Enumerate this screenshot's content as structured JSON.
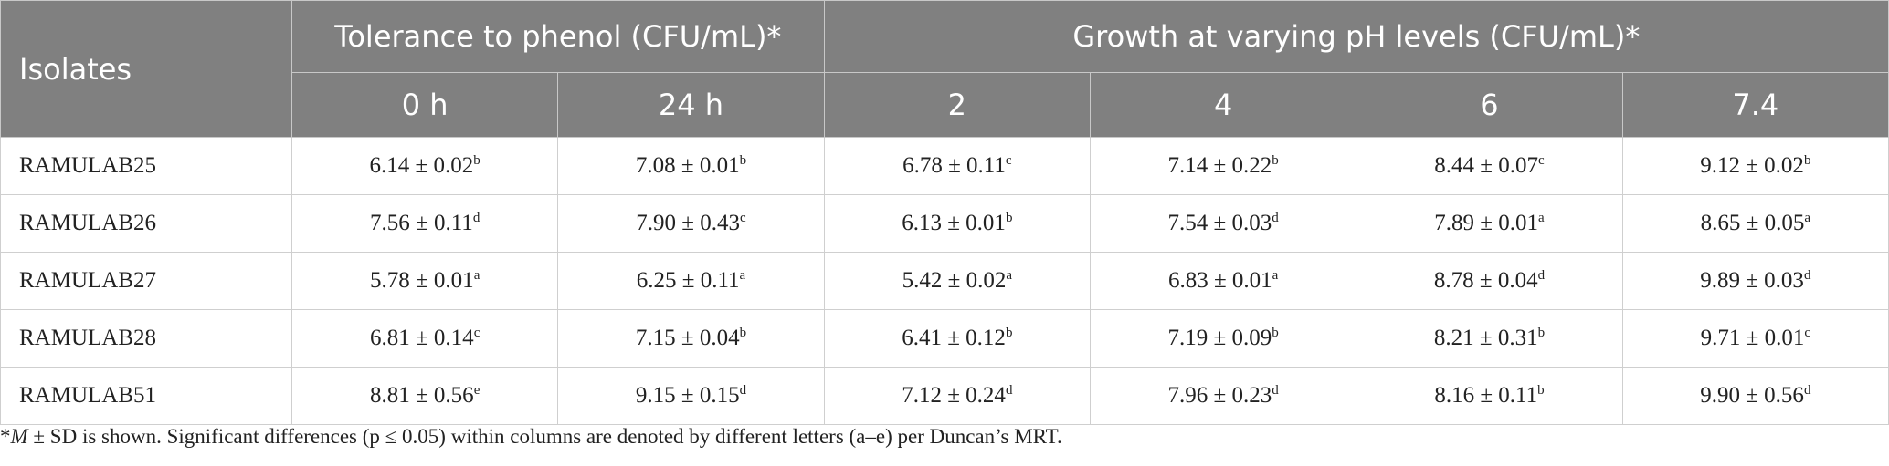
{
  "table": {
    "header": {
      "isolates": "Isolates",
      "groups": [
        "Tolerance to phenol (CFU/mL)*",
        "Growth at varying pH levels (CFU/mL)*"
      ],
      "columns": [
        "0 h",
        "24 h",
        "2",
        "4",
        "6",
        "7.4"
      ]
    },
    "rows": [
      {
        "isolate": "RAMULAB25",
        "cells": [
          {
            "value": "6.14 ± 0.02",
            "letter": "b"
          },
          {
            "value": "7.08 ± 0.01",
            "letter": "b"
          },
          {
            "value": "6.78 ± 0.11",
            "letter": "c"
          },
          {
            "value": "7.14 ± 0.22",
            "letter": "b"
          },
          {
            "value": "8.44 ± 0.07",
            "letter": "c"
          },
          {
            "value": "9.12 ± 0.02",
            "letter": "b"
          }
        ]
      },
      {
        "isolate": "RAMULAB26",
        "cells": [
          {
            "value": "7.56 ± 0.11",
            "letter": "d"
          },
          {
            "value": "7.90 ± 0.43",
            "letter": "c"
          },
          {
            "value": "6.13 ± 0.01",
            "letter": "b"
          },
          {
            "value": "7.54 ± 0.03",
            "letter": "d"
          },
          {
            "value": "7.89 ± 0.01",
            "letter": "a"
          },
          {
            "value": "8.65 ± 0.05",
            "letter": "a"
          }
        ]
      },
      {
        "isolate": "RAMULAB27",
        "cells": [
          {
            "value": "5.78 ± 0.01",
            "letter": "a"
          },
          {
            "value": "6.25 ± 0.11",
            "letter": "a"
          },
          {
            "value": "5.42 ± 0.02",
            "letter": "a"
          },
          {
            "value": "6.83 ± 0.01",
            "letter": "a"
          },
          {
            "value": "8.78 ± 0.04",
            "letter": "d"
          },
          {
            "value": "9.89 ± 0.03",
            "letter": "d"
          }
        ]
      },
      {
        "isolate": "RAMULAB28",
        "cells": [
          {
            "value": "6.81 ± 0.14",
            "letter": "c"
          },
          {
            "value": "7.15 ± 0.04",
            "letter": "b"
          },
          {
            "value": "6.41 ± 0.12",
            "letter": "b"
          },
          {
            "value": "7.19 ± 0.09",
            "letter": "b"
          },
          {
            "value": "8.21 ± 0.31",
            "letter": "b"
          },
          {
            "value": "9.71 ± 0.01",
            "letter": "c"
          }
        ]
      },
      {
        "isolate": "RAMULAB51",
        "cells": [
          {
            "value": "8.81 ± 0.56",
            "letter": "e"
          },
          {
            "value": "9.15 ± 0.15",
            "letter": "d"
          },
          {
            "value": "7.12 ± 0.24",
            "letter": "d"
          },
          {
            "value": "7.96 ± 0.23",
            "letter": "d"
          },
          {
            "value": "8.16 ± 0.11",
            "letter": "b"
          },
          {
            "value": "9.90 ± 0.56",
            "letter": "d"
          }
        ]
      }
    ]
  },
  "footnote": {
    "mark": "*",
    "italic": "M",
    "text": " ± SD is shown. Significant differences (p ≤ 0.05) within columns are denoted by different letters (a–e) per Duncan’s MRT."
  }
}
